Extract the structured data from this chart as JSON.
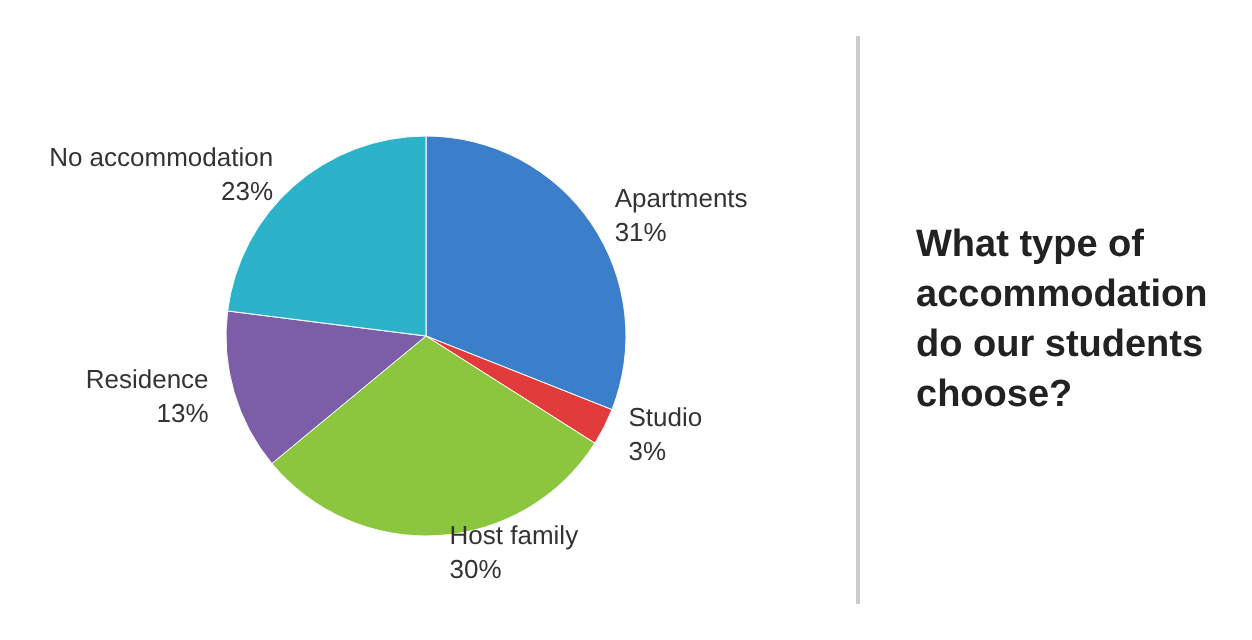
{
  "chart_data": {
    "type": "pie",
    "title": "What type of accommodation do our students choose?",
    "categories": [
      "Apartments",
      "Studio",
      "Host family",
      "Residence",
      "No accommodation"
    ],
    "values": [
      31,
      3,
      30,
      13,
      23
    ],
    "value_labels": [
      "31%",
      "3%",
      "30%",
      "13%",
      "23%"
    ],
    "colors": [
      "#3b7fcb",
      "#e23b3b",
      "#8cc63f",
      "#7b5ea7",
      "#2db3c9"
    ],
    "legend": false
  }
}
